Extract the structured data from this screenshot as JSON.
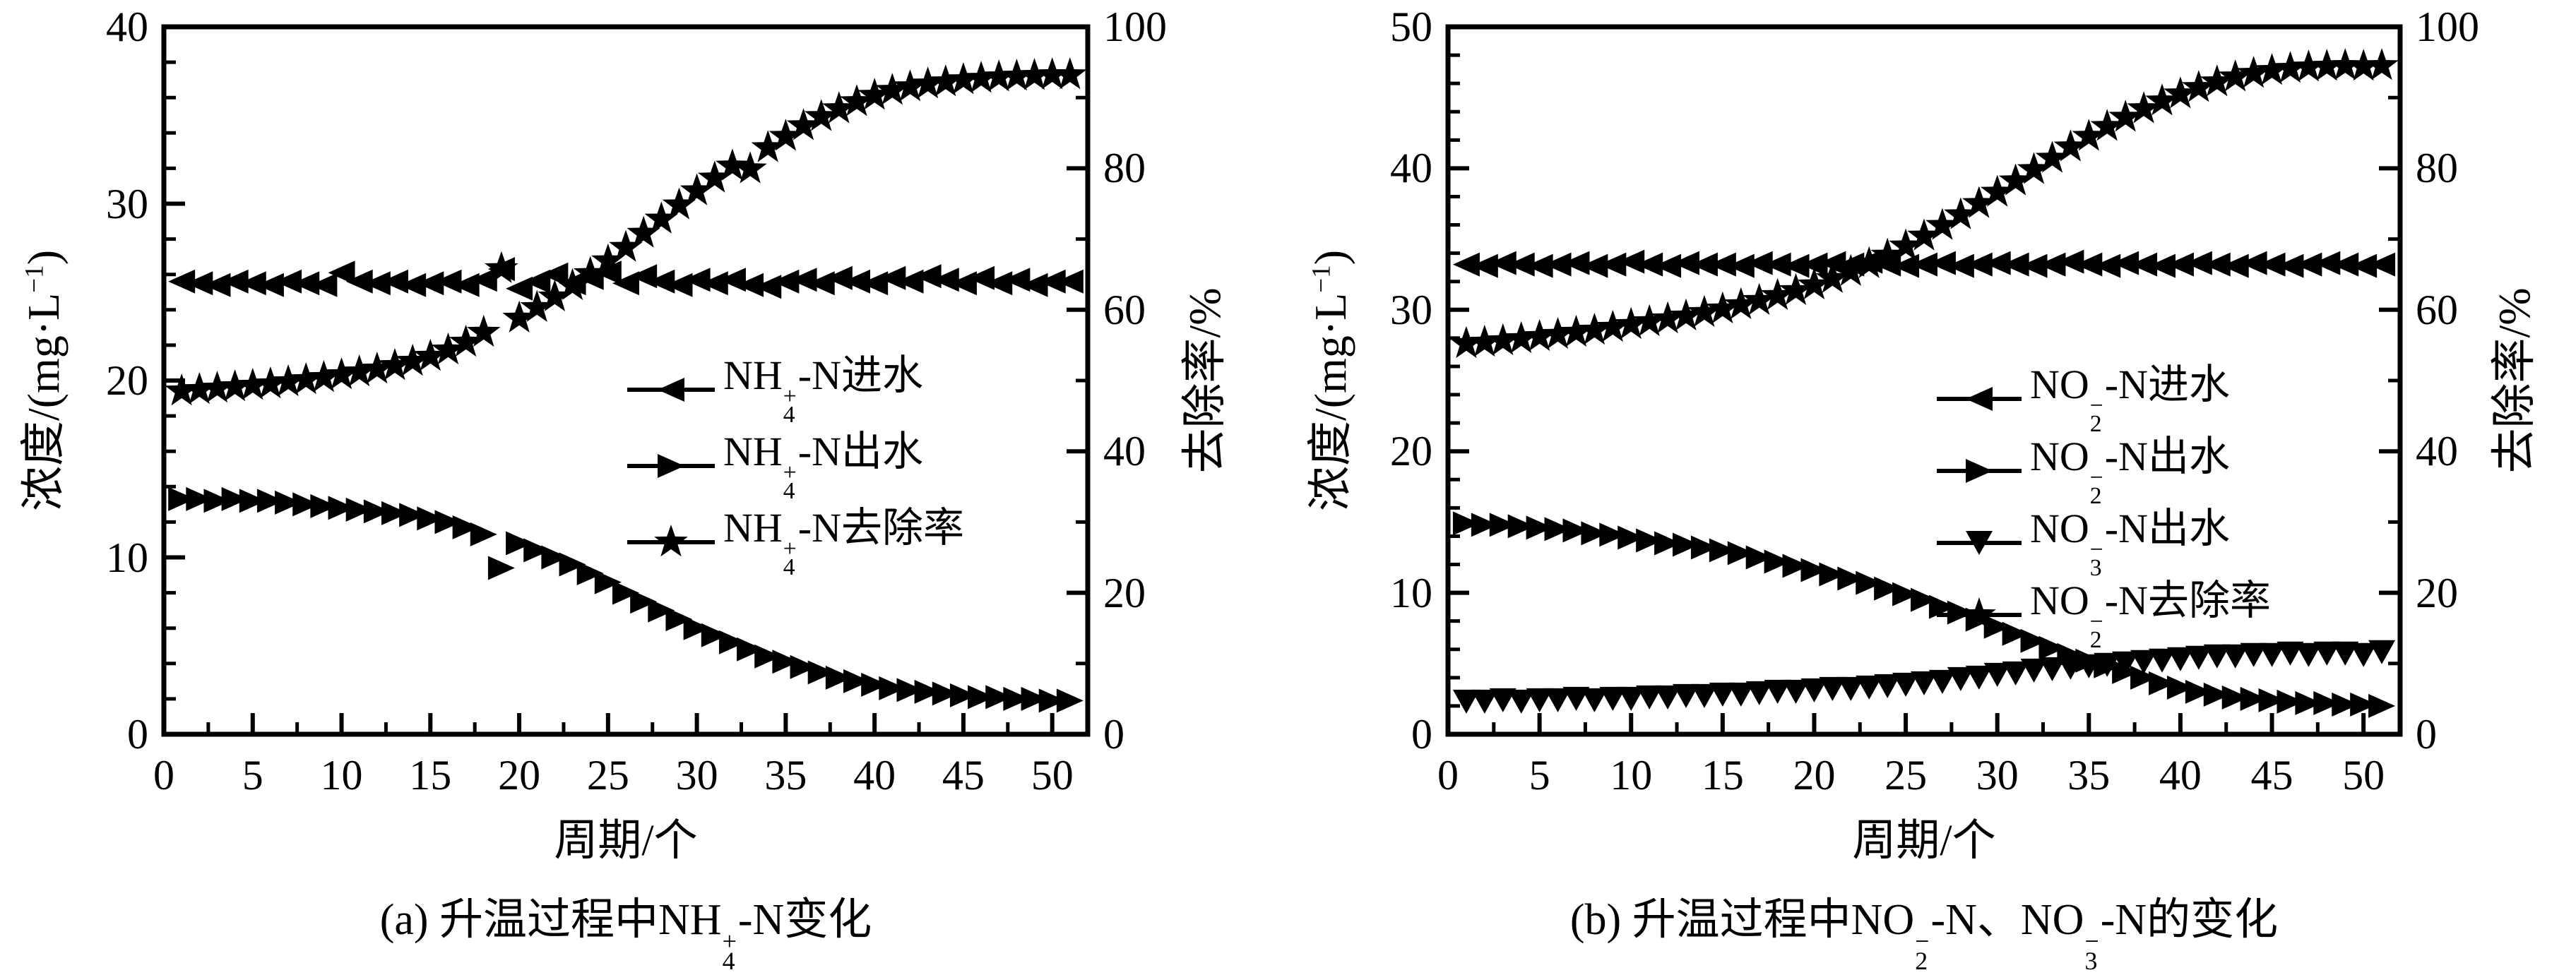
{
  "page": {
    "background": "#ffffff",
    "ink": "#000000"
  },
  "chart_data": [
    {
      "id": "a",
      "type": "scatter",
      "caption": [
        {
          "t": "(a) 升温过程中NH"
        },
        {
          "sub": "4",
          "sup": "+"
        },
        {
          "t": "-N变化"
        }
      ],
      "xlabel": "周期/个",
      "ylabel_left": [
        {
          "t": "浓度/(mg·L"
        },
        {
          "t": "−1",
          "s": "sup"
        },
        {
          "t": ")"
        }
      ],
      "ylabel_right": [
        {
          "t": "去除率/%"
        }
      ],
      "x_axis": {
        "min": 0,
        "max": 52,
        "major_tick_labels": [
          0,
          5,
          10,
          15,
          20,
          25,
          30,
          35,
          40,
          45,
          50
        ],
        "minor_step": 2.5
      },
      "y_left_axis": {
        "min": 0,
        "max": 40,
        "major_tick_labels": [
          0,
          10,
          20,
          30,
          40
        ],
        "minor_step": 2
      },
      "y_right_axis": {
        "min": 0,
        "max": 100,
        "major_tick_labels": [
          0,
          20,
          40,
          60,
          80,
          100
        ],
        "minor_step": 10
      },
      "cycles_first": 1,
      "grid": false,
      "legend": [
        {
          "marker": "tri-left",
          "label": [
            {
              "t": "NH"
            },
            {
              "sub": "4",
              "sup": "+"
            },
            {
              "t": "-N进水"
            }
          ]
        },
        {
          "marker": "tri-right",
          "label": [
            {
              "t": "NH"
            },
            {
              "sub": "4",
              "sup": "+"
            },
            {
              "t": "-N出水"
            }
          ]
        },
        {
          "marker": "star",
          "label": [
            {
              "t": "NH"
            },
            {
              "sub": "4",
              "sup": "+"
            },
            {
              "t": "-N去除率"
            }
          ]
        }
      ],
      "series": [
        {
          "name": "NH4-N-influent",
          "marker": "tri-left",
          "axis": "left",
          "values": [
            25.6,
            25.5,
            25.4,
            25.6,
            25.5,
            25.4,
            25.6,
            25.5,
            25.4,
            26.1,
            25.6,
            25.5,
            25.6,
            25.4,
            25.5,
            25.6,
            25.4,
            25.7,
            26.3,
            25.2,
            25.6,
            26.0,
            25.5,
            25.8,
            26.1,
            25.5,
            25.9,
            25.6,
            25.4,
            25.7,
            25.5,
            25.7,
            25.4,
            25.3,
            25.6,
            25.7,
            25.5,
            25.8,
            25.6,
            25.5,
            25.8,
            25.6,
            25.9,
            25.7,
            25.5,
            25.8,
            25.5,
            25.7,
            25.4,
            25.6,
            25.6
          ]
        },
        {
          "name": "NH4-N-effluent",
          "marker": "tri-right",
          "axis": "left",
          "values": [
            13.3,
            13.3,
            13.2,
            13.3,
            13.2,
            13.2,
            13.1,
            13.0,
            12.9,
            12.8,
            12.7,
            12.6,
            12.5,
            12.4,
            12.2,
            12.0,
            11.7,
            11.3,
            9.4,
            10.8,
            10.4,
            10.0,
            9.6,
            9.1,
            8.6,
            8.0,
            7.5,
            7.0,
            6.5,
            6.0,
            5.6,
            5.2,
            4.8,
            4.4,
            4.1,
            3.8,
            3.5,
            3.2,
            3.0,
            2.8,
            2.6,
            2.5,
            2.4,
            2.3,
            2.2,
            2.1,
            2.1,
            2.0,
            2.0,
            1.9,
            1.9
          ]
        },
        {
          "name": "NH4-N-removal-rate",
          "marker": "star",
          "axis": "right",
          "values": [
            48.5,
            48.7,
            48.9,
            49.1,
            49.3,
            49.5,
            49.8,
            50.1,
            50.4,
            50.8,
            51.2,
            51.6,
            52.1,
            52.7,
            53.4,
            54.3,
            55.4,
            56.8,
            65.8,
            58.8,
            60.3,
            61.8,
            63.4,
            65.1,
            66.9,
            68.8,
            70.8,
            72.8,
            74.8,
            76.8,
            78.6,
            80.3,
            79.9,
            82.9,
            84.5,
            86.0,
            87.3,
            88.4,
            89.4,
            90.3,
            91.0,
            91.5,
            91.9,
            92.2,
            92.5,
            92.7,
            92.9,
            93.0,
            93.1,
            93.2,
            93.2
          ]
        }
      ]
    },
    {
      "id": "b",
      "type": "scatter",
      "caption": [
        {
          "t": "(b) 升温过程中NO"
        },
        {
          "sub": "2",
          "sup": "−"
        },
        {
          "t": "-N、NO"
        },
        {
          "sub": "3",
          "sup": "−"
        },
        {
          "t": "-N的变化"
        }
      ],
      "xlabel": "周期/个",
      "ylabel_left": [
        {
          "t": "浓度/(mg·L"
        },
        {
          "t": "−1",
          "s": "sup"
        },
        {
          "t": ")"
        }
      ],
      "ylabel_right": [
        {
          "t": "去除率/%"
        }
      ],
      "x_axis": {
        "min": 0,
        "max": 52,
        "major_tick_labels": [
          0,
          5,
          10,
          15,
          20,
          25,
          30,
          35,
          40,
          45,
          50
        ],
        "minor_step": 2.5
      },
      "y_left_axis": {
        "min": 0,
        "max": 50,
        "major_tick_labels": [
          0,
          10,
          20,
          30,
          40,
          50
        ],
        "minor_step": 2
      },
      "y_right_axis": {
        "min": 0,
        "max": 100,
        "major_tick_labels": [
          0,
          20,
          40,
          60,
          80,
          100
        ],
        "minor_step": 10
      },
      "cycles_first": 1,
      "grid": false,
      "legend": [
        {
          "marker": "tri-left",
          "label": [
            {
              "t": "NO"
            },
            {
              "sub": "2",
              "sup": "−"
            },
            {
              "t": "-N进水"
            }
          ]
        },
        {
          "marker": "tri-right",
          "label": [
            {
              "t": "NO"
            },
            {
              "sub": "2",
              "sup": "−"
            },
            {
              "t": "-N出水"
            }
          ]
        },
        {
          "marker": "tri-down",
          "label": [
            {
              "t": "NO"
            },
            {
              "sub": "3",
              "sup": "−"
            },
            {
              "t": "-N出水"
            }
          ]
        },
        {
          "marker": "star",
          "label": [
            {
              "t": "NO"
            },
            {
              "sub": "2",
              "sup": "−"
            },
            {
              "t": "-N去除率"
            }
          ]
        }
      ],
      "series": [
        {
          "name": "NO2-N-influent",
          "marker": "tri-left",
          "axis": "left",
          "values": [
            33.2,
            33.1,
            33.3,
            33.2,
            33.1,
            33.2,
            33.3,
            33.1,
            33.2,
            33.4,
            33.2,
            33.1,
            33.3,
            33.2,
            33.2,
            33.1,
            33.3,
            33.2,
            33.1,
            33.2,
            33.3,
            33.2,
            33.4,
            33.2,
            33.1,
            33.2,
            33.3,
            33.1,
            33.2,
            33.3,
            33.2,
            33.1,
            33.2,
            33.4,
            33.2,
            33.1,
            33.3,
            33.2,
            33.1,
            33.2,
            33.3,
            33.2,
            33.1,
            33.3,
            33.2,
            33.1,
            33.2,
            33.3,
            33.2,
            33.1,
            33.2
          ]
        },
        {
          "name": "NO2-N-effluent",
          "marker": "tri-right",
          "axis": "left",
          "values": [
            14.9,
            14.8,
            14.8,
            14.7,
            14.6,
            14.5,
            14.4,
            14.2,
            14.1,
            13.9,
            13.7,
            13.5,
            13.4,
            13.2,
            13.0,
            12.8,
            12.5,
            12.2,
            11.9,
            11.6,
            11.3,
            11.0,
            10.7,
            10.3,
            9.9,
            9.5,
            9.0,
            8.6,
            8.1,
            7.6,
            7.1,
            6.6,
            6.1,
            5.6,
            5.2,
            4.8,
            4.4,
            4.0,
            3.6,
            3.3,
            3.0,
            2.8,
            2.6,
            2.5,
            2.4,
            2.3,
            2.2,
            2.2,
            2.1,
            2.1,
            2.0
          ]
        },
        {
          "name": "NO3-N-effluent",
          "marker": "tri-down",
          "axis": "left",
          "values": [
            2.3,
            2.3,
            2.4,
            2.3,
            2.4,
            2.4,
            2.5,
            2.4,
            2.5,
            2.5,
            2.6,
            2.6,
            2.7,
            2.7,
            2.8,
            2.8,
            2.9,
            3.0,
            3.0,
            3.1,
            3.2,
            3.2,
            3.3,
            3.4,
            3.5,
            3.6,
            3.7,
            3.9,
            4.0,
            4.2,
            4.3,
            4.5,
            4.6,
            4.7,
            4.8,
            4.9,
            5.0,
            5.1,
            5.2,
            5.3,
            5.4,
            5.5,
            5.5,
            5.6,
            5.6,
            5.7,
            5.6,
            5.7,
            5.7,
            5.6,
            5.8
          ]
        },
        {
          "name": "NO2-N-removal-rate",
          "marker": "star",
          "axis": "right",
          "values": [
            55.2,
            55.4,
            55.6,
            55.9,
            56.2,
            56.5,
            56.8,
            57.1,
            57.5,
            57.9,
            58.3,
            58.7,
            59.1,
            59.6,
            60.1,
            60.7,
            61.3,
            62.0,
            62.7,
            63.5,
            64.4,
            65.4,
            66.5,
            67.7,
            69.0,
            70.4,
            71.9,
            73.4,
            75.0,
            76.6,
            78.2,
            79.8,
            81.4,
            83.0,
            84.5,
            85.9,
            87.2,
            88.4,
            89.5,
            90.5,
            91.4,
            92.2,
            92.9,
            93.4,
            93.8,
            94.1,
            94.3,
            94.4,
            94.5,
            94.4,
            94.5
          ]
        }
      ]
    }
  ]
}
